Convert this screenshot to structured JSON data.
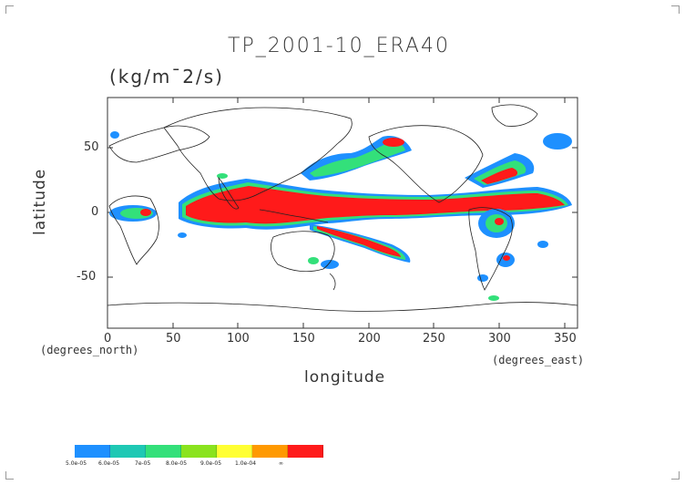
{
  "title": "TP_2001-10_ERA40",
  "units": "(kg/m¯2/s)",
  "xlabel": "longitude",
  "ylabel": "latitude",
  "xunit_left": "(degrees_north)",
  "xunit_right": "(degrees_east)",
  "x_ticks": [
    "0",
    "50",
    "100",
    "150",
    "200",
    "250",
    "300",
    "350"
  ],
  "y_ticks": [
    "50",
    "0",
    "-50"
  ],
  "legend": {
    "labels": [
      "5.0e-05",
      "6.0e-05",
      "7e-05",
      "8.0e-05",
      "9.0e-05",
      "1.0e-04",
      "∞"
    ],
    "colors": [
      "#1e90ff",
      "#1ec8b4",
      "#33e07a",
      "#8ae31e",
      "#ffff33",
      "#ff9900",
      "#ff1a1a"
    ]
  },
  "colors": {
    "band_low": "#1e90ff",
    "band_mid_low": "#1ec8b4",
    "band_mid": "#33e07a",
    "band_green": "#8ae31e",
    "band_yellow": "#ffff33",
    "band_orange": "#ff9900",
    "band_high": "#ff1a1a",
    "coastline": "#222222"
  }
}
